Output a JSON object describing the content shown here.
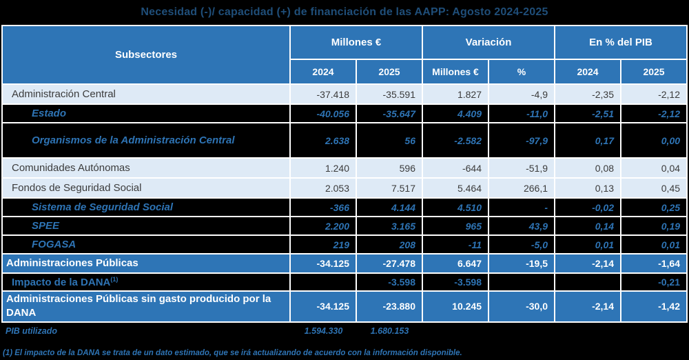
{
  "title": "Necesidad (-)/ capacidad (+) de financiación de las AAPP:  Agosto 2024-2025",
  "colors": {
    "page_background": "#000000",
    "header_blue": "#2E75B6",
    "light_row_blue": "#DEEAF6",
    "light_row_text": "#3B3B3B",
    "dark_row_text_blue": "#2E74B5",
    "title_blue": "#1F4E79",
    "gridline_white": "#FFFFFF"
  },
  "header": {
    "subsectores": "Subsectores",
    "groups": [
      {
        "label": "Millones €",
        "cols": [
          "2024",
          "2025"
        ]
      },
      {
        "label": "Variación",
        "cols": [
          "Millones €",
          "%"
        ]
      },
      {
        "label": "En % del PIB",
        "cols": [
          "2024",
          "2025"
        ]
      }
    ]
  },
  "rows": [
    {
      "label": "Administración Central",
      "style": "light",
      "indent": 1,
      "values": [
        "-37.418",
        "-35.591",
        "1.827",
        "-4,9",
        "-2,35",
        "-2,12"
      ]
    },
    {
      "label": "Estado",
      "style": "dark",
      "indent": 2,
      "values": [
        "-40.056",
        "-35.647",
        "4.409",
        "-11,0",
        "-2,51",
        "-2,12"
      ]
    },
    {
      "label": "Organismos de la Administración Central",
      "style": "dark",
      "indent": 2,
      "tall": true,
      "values": [
        "2.638",
        "56",
        "-2.582",
        "-97,9",
        "0,17",
        "0,00"
      ]
    },
    {
      "label": "Comunidades Autónomas",
      "style": "light",
      "indent": 1,
      "values": [
        "1.240",
        "596",
        "-644",
        "-51,9",
        "0,08",
        "0,04"
      ]
    },
    {
      "label": "Fondos de Seguridad Social",
      "style": "light",
      "indent": 1,
      "values": [
        "2.053",
        "7.517",
        "5.464",
        "266,1",
        "0,13",
        "0,45"
      ]
    },
    {
      "label": "Sistema de Seguridad Social",
      "style": "dark",
      "indent": 2,
      "values": [
        "-366",
        "4.144",
        "4.510",
        "-",
        "-0,02",
        "0,25"
      ]
    },
    {
      "label": "SPEE",
      "style": "dark",
      "indent": 2,
      "values": [
        "2.200",
        "3.165",
        "965",
        "43,9",
        "0,14",
        "0,19"
      ]
    },
    {
      "label": "FOGASA",
      "style": "dark",
      "indent": 2,
      "values": [
        "219",
        "208",
        "-11",
        "-5,0",
        "0,01",
        "0,01"
      ]
    },
    {
      "label": "Administraciones Públicas",
      "style": "total",
      "indent": 0,
      "values": [
        "-34.125",
        "-27.478",
        "6.647",
        "-19,5",
        "-2,14",
        "-1,64"
      ]
    },
    {
      "label": "Impacto de la DANA",
      "sup": "(1)",
      "style": "dark-plain",
      "indent": 1,
      "values": [
        "",
        "-3.598",
        "-3.598",
        "",
        "",
        "-0,21"
      ]
    },
    {
      "label": "Administraciones Públicas sin gasto producido por la DANA",
      "style": "total",
      "indent": 0,
      "values": [
        "-34.125",
        "-23.880",
        "10.245",
        "-30,0",
        "-2,14",
        "-1,42"
      ]
    },
    {
      "label": "PIB utilizado",
      "style": "pib",
      "indent": 0,
      "values": [
        "1.594.330",
        "1.680.153",
        "",
        "",
        "",
        ""
      ]
    }
  ],
  "footnote": "(1) El impacto de la DANA se trata de un dato estimado, que se irá actualizando de acuerdo con la información disponible."
}
